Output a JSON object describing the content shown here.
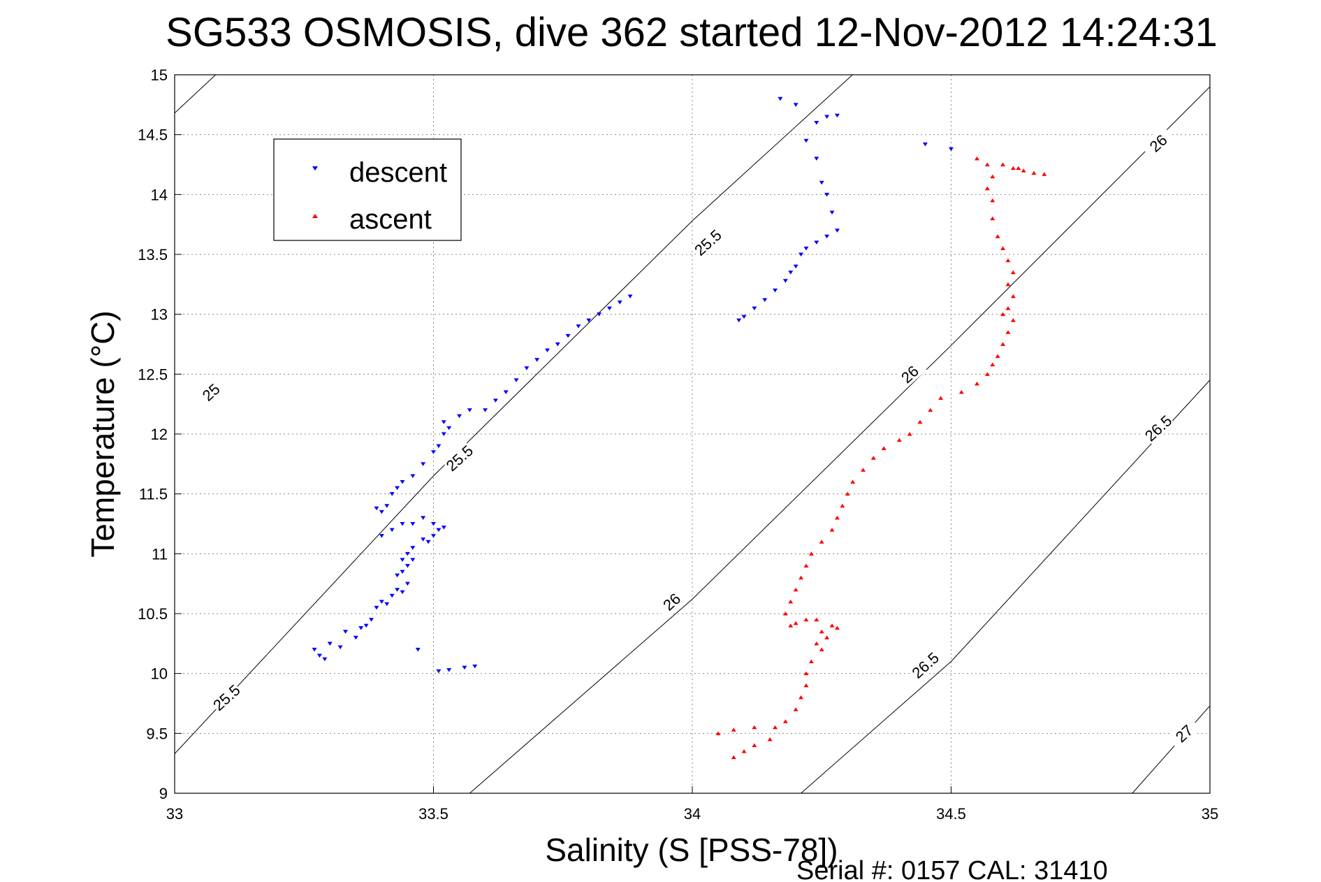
{
  "chart_data": {
    "type": "scatter",
    "title": "SG533 OSMOSIS, dive 362 started 12-Nov-2012 14:24:31",
    "xlabel": "Salinity (S [PSS-78])",
    "ylabel": "Temperature (°C)",
    "xlim": [
      33,
      35
    ],
    "ylim": [
      9,
      15
    ],
    "x_ticks": [
      "33",
      "33.5",
      "34",
      "34.5",
      "35"
    ],
    "y_ticks": [
      "9",
      "9.5",
      "10",
      "10.5",
      "11",
      "11.5",
      "12",
      "12.5",
      "13",
      "13.5",
      "14",
      "14.5",
      "15"
    ],
    "grid": true,
    "legend_position": "top-left",
    "footer": "Serial #: 0157  CAL: 31410",
    "colors": {
      "descent": "#0000ff",
      "ascent": "#ff0000",
      "contour": "#000000"
    },
    "density_contours": [
      {
        "label": "25",
        "points": [
          [
            33.0,
            14.68
          ],
          [
            33.5,
            16.7
          ]
        ],
        "label_at": [
          33.07,
          12.35
        ]
      },
      {
        "label": "25.5",
        "points": [
          [
            33.0,
            9.33
          ],
          [
            33.5,
            11.65
          ],
          [
            34.0,
            13.78
          ],
          [
            34.5,
            15.75
          ]
        ],
        "label_at": [
          [
            33.1,
            9.8
          ],
          [
            33.55,
            11.8
          ],
          [
            34.03,
            13.6
          ]
        ]
      },
      {
        "label": "26",
        "points": [
          [
            33.57,
            9.0
          ],
          [
            34.0,
            10.62
          ],
          [
            34.5,
            12.74
          ],
          [
            35.0,
            14.9
          ]
        ],
        "label_at": [
          [
            33.96,
            10.6
          ],
          [
            34.42,
            12.5
          ],
          [
            34.9,
            14.43
          ]
        ]
      },
      {
        "label": "26.5",
        "points": [
          [
            34.21,
            9.0
          ],
          [
            34.5,
            10.1
          ],
          [
            35.0,
            12.45
          ]
        ],
        "label_at": [
          [
            34.45,
            10.07
          ],
          [
            34.9,
            12.05
          ]
        ]
      },
      {
        "label": "27",
        "points": [
          [
            34.85,
            9.0
          ],
          [
            35.0,
            9.73
          ]
        ],
        "label_at": [
          34.95,
          9.5
        ]
      }
    ],
    "series": [
      {
        "name": "descent",
        "marker": "triangle-down",
        "color": "#0000ff",
        "points": [
          [
            33.28,
            10.15
          ],
          [
            33.27,
            10.2
          ],
          [
            33.29,
            10.12
          ],
          [
            33.3,
            10.25
          ],
          [
            33.32,
            10.22
          ],
          [
            33.33,
            10.35
          ],
          [
            33.35,
            10.3
          ],
          [
            33.36,
            10.38
          ],
          [
            33.37,
            10.4
          ],
          [
            33.38,
            10.45
          ],
          [
            33.39,
            10.55
          ],
          [
            33.4,
            10.6
          ],
          [
            33.41,
            10.58
          ],
          [
            33.42,
            10.65
          ],
          [
            33.43,
            10.7
          ],
          [
            33.44,
            10.68
          ],
          [
            33.45,
            10.75
          ],
          [
            33.44,
            10.85
          ],
          [
            33.43,
            10.82
          ],
          [
            33.45,
            10.9
          ],
          [
            33.46,
            10.95
          ],
          [
            33.44,
            10.95
          ],
          [
            33.45,
            11.0
          ],
          [
            33.46,
            11.05
          ],
          [
            33.48,
            11.12
          ],
          [
            33.49,
            11.1
          ],
          [
            33.5,
            11.15
          ],
          [
            33.51,
            11.2
          ],
          [
            33.52,
            11.22
          ],
          [
            33.5,
            11.25
          ],
          [
            33.48,
            11.3
          ],
          [
            33.46,
            11.25
          ],
          [
            33.44,
            11.25
          ],
          [
            33.42,
            11.2
          ],
          [
            33.4,
            11.15
          ],
          [
            33.39,
            11.38
          ],
          [
            33.4,
            11.35
          ],
          [
            33.41,
            11.4
          ],
          [
            33.42,
            11.5
          ],
          [
            33.43,
            11.55
          ],
          [
            33.44,
            11.6
          ],
          [
            33.46,
            11.65
          ],
          [
            33.48,
            11.75
          ],
          [
            33.5,
            11.85
          ],
          [
            33.51,
            11.9
          ],
          [
            33.52,
            12.0
          ],
          [
            33.53,
            12.05
          ],
          [
            33.52,
            12.1
          ],
          [
            33.55,
            12.15
          ],
          [
            33.57,
            12.2
          ],
          [
            33.6,
            12.2
          ],
          [
            33.62,
            12.28
          ],
          [
            33.64,
            12.35
          ],
          [
            33.66,
            12.45
          ],
          [
            33.68,
            12.55
          ],
          [
            33.7,
            12.62
          ],
          [
            33.72,
            12.7
          ],
          [
            33.74,
            12.75
          ],
          [
            33.76,
            12.82
          ],
          [
            33.78,
            12.9
          ],
          [
            33.8,
            12.95
          ],
          [
            33.82,
            13.0
          ],
          [
            33.84,
            13.05
          ],
          [
            33.86,
            13.1
          ],
          [
            33.88,
            13.15
          ],
          [
            33.47,
            10.2
          ],
          [
            33.51,
            10.02
          ],
          [
            33.53,
            10.03
          ],
          [
            33.56,
            10.05
          ],
          [
            33.58,
            10.06
          ],
          [
            34.09,
            12.95
          ],
          [
            34.1,
            12.98
          ],
          [
            34.12,
            13.05
          ],
          [
            34.14,
            13.12
          ],
          [
            34.16,
            13.2
          ],
          [
            34.18,
            13.28
          ],
          [
            34.19,
            13.35
          ],
          [
            34.2,
            13.4
          ],
          [
            34.21,
            13.5
          ],
          [
            34.22,
            13.55
          ],
          [
            34.24,
            13.6
          ],
          [
            34.26,
            13.65
          ],
          [
            34.28,
            13.7
          ],
          [
            34.27,
            13.85
          ],
          [
            34.26,
            14.0
          ],
          [
            34.25,
            14.1
          ],
          [
            34.24,
            14.3
          ],
          [
            34.22,
            14.45
          ],
          [
            34.24,
            14.6
          ],
          [
            34.26,
            14.65
          ],
          [
            34.28,
            14.66
          ],
          [
            34.2,
            14.75
          ],
          [
            34.17,
            14.8
          ],
          [
            34.45,
            14.42
          ],
          [
            34.5,
            14.38
          ]
        ]
      },
      {
        "name": "ascent",
        "marker": "triangle-up",
        "color": "#ff0000",
        "points": [
          [
            34.08,
            9.3
          ],
          [
            34.1,
            9.35
          ],
          [
            34.12,
            9.4
          ],
          [
            34.15,
            9.45
          ],
          [
            34.05,
            9.5
          ],
          [
            34.08,
            9.53
          ],
          [
            34.12,
            9.55
          ],
          [
            34.16,
            9.55
          ],
          [
            34.18,
            9.6
          ],
          [
            34.2,
            9.7
          ],
          [
            34.21,
            9.8
          ],
          [
            34.22,
            9.9
          ],
          [
            34.22,
            10.0
          ],
          [
            34.23,
            10.1
          ],
          [
            34.25,
            10.2
          ],
          [
            34.24,
            10.25
          ],
          [
            34.26,
            10.3
          ],
          [
            34.28,
            10.38
          ],
          [
            34.27,
            10.4
          ],
          [
            34.25,
            10.35
          ],
          [
            34.24,
            10.45
          ],
          [
            34.22,
            10.45
          ],
          [
            34.2,
            10.42
          ],
          [
            34.19,
            10.4
          ],
          [
            34.18,
            10.5
          ],
          [
            34.19,
            10.6
          ],
          [
            34.2,
            10.7
          ],
          [
            34.21,
            10.8
          ],
          [
            34.22,
            10.9
          ],
          [
            34.23,
            11.0
          ],
          [
            34.25,
            11.1
          ],
          [
            34.27,
            11.2
          ],
          [
            34.28,
            11.3
          ],
          [
            34.29,
            11.4
          ],
          [
            34.3,
            11.5
          ],
          [
            34.31,
            11.6
          ],
          [
            34.33,
            11.7
          ],
          [
            34.35,
            11.8
          ],
          [
            34.37,
            11.88
          ],
          [
            34.4,
            11.95
          ],
          [
            34.42,
            12.0
          ],
          [
            34.44,
            12.1
          ],
          [
            34.46,
            12.2
          ],
          [
            34.48,
            12.3
          ],
          [
            34.52,
            12.35
          ],
          [
            34.55,
            12.42
          ],
          [
            34.57,
            12.5
          ],
          [
            34.58,
            12.58
          ],
          [
            34.59,
            12.65
          ],
          [
            34.6,
            12.75
          ],
          [
            34.61,
            12.85
          ],
          [
            34.62,
            12.95
          ],
          [
            34.6,
            13.0
          ],
          [
            34.61,
            13.05
          ],
          [
            34.62,
            13.15
          ],
          [
            34.61,
            13.25
          ],
          [
            34.62,
            13.35
          ],
          [
            34.61,
            13.45
          ],
          [
            34.6,
            13.55
          ],
          [
            34.59,
            13.65
          ],
          [
            34.58,
            13.8
          ],
          [
            34.58,
            13.95
          ],
          [
            34.57,
            14.05
          ],
          [
            34.58,
            14.15
          ],
          [
            34.57,
            14.25
          ],
          [
            34.55,
            14.3
          ],
          [
            34.6,
            14.25
          ],
          [
            34.62,
            14.22
          ],
          [
            34.64,
            14.2
          ],
          [
            34.66,
            14.18
          ],
          [
            34.68,
            14.17
          ],
          [
            34.63,
            14.22
          ]
        ]
      }
    ]
  }
}
